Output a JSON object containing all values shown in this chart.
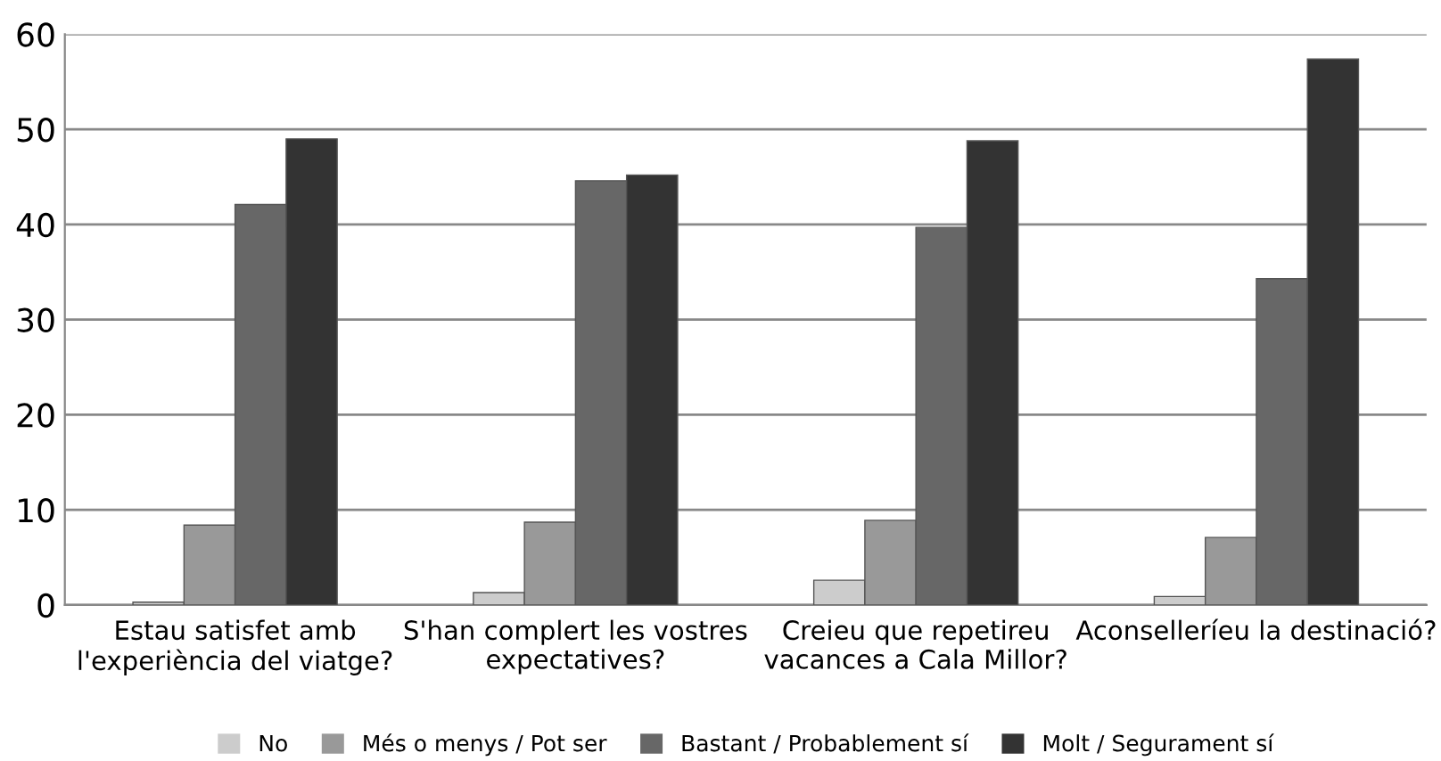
{
  "chart_data": {
    "type": "bar",
    "categories": [
      "Estau satisfet amb\nl'experiència del viatge?",
      "S'han complert les vostres\nexpectatives?",
      "Creieu que repetireu\nvacances a Cala Millor?",
      "Aconselleríeu la destinació?"
    ],
    "series": [
      {
        "name": "No",
        "color": "#cccccc",
        "values": [
          0.3,
          1.3,
          2.6,
          0.9
        ]
      },
      {
        "name": "Més o menys / Pot ser",
        "color": "#999999",
        "values": [
          8.4,
          8.7,
          8.9,
          7.1
        ]
      },
      {
        "name": "Bastant / Probablement sí",
        "color": "#676767",
        "values": [
          42.1,
          44.6,
          39.7,
          34.3
        ]
      },
      {
        "name": "Molt / Segurament sí",
        "color": "#333333",
        "values": [
          49.0,
          45.2,
          48.8,
          57.4
        ]
      }
    ],
    "ylim": [
      0,
      60
    ],
    "yticks": [
      0,
      10,
      20,
      30,
      40,
      50,
      60
    ],
    "grid": "y",
    "legend": "bottom"
  }
}
